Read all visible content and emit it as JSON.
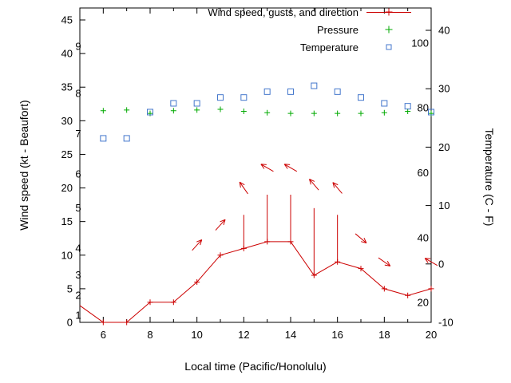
{
  "axes": {
    "xlabel": "Local time (Pacific/Honolulu)",
    "ylabel_left": "Wind speed (kt - Beaufort)",
    "ylabel_right": "Temperature (C - F)"
  },
  "legend": {
    "position": "top-right-inside",
    "entries": [
      {
        "label": "Wind speed, gusts, and direction",
        "marker": "line-plus",
        "color": "#cc0000"
      },
      {
        "label": "Pressure",
        "marker": "plus",
        "color": "#00aa00"
      },
      {
        "label": "Temperature",
        "marker": "open-square",
        "color": "#4477cc"
      }
    ]
  },
  "chart_data": {
    "type": "line",
    "title": "",
    "xlabel": "Local time (Pacific/Honolulu)",
    "ylabel_left": "Wind speed (kt - Beaufort)",
    "ylabel_right": "Temperature (C - F)",
    "grid": false,
    "x_range": [
      5,
      20
    ],
    "x_major_ticks": [
      6,
      8,
      10,
      12,
      14,
      16,
      18,
      20
    ],
    "x_minor_ticks": [
      5,
      7,
      9,
      11,
      13,
      15,
      17,
      19
    ],
    "y_left_range": [
      0,
      46.8
    ],
    "y_left_ticks": [
      0,
      5,
      10,
      15,
      20,
      25,
      30,
      35,
      40,
      45
    ],
    "y_right_range_c": [
      -10,
      43.8
    ],
    "y_right_ticks_c": [
      -10,
      0,
      10,
      20,
      30,
      40
    ],
    "beaufort_scale_labels": [
      {
        "text": "1",
        "kt": 1
      },
      {
        "text": "2",
        "kt": 4
      },
      {
        "text": "3",
        "kt": 7
      },
      {
        "text": "4",
        "kt": 11
      },
      {
        "text": "5",
        "kt": 17
      },
      {
        "text": "6",
        "kt": 22
      },
      {
        "text": "7",
        "kt": 28
      },
      {
        "text": "8",
        "kt": 34
      },
      {
        "text": "9",
        "kt": 41
      }
    ],
    "fahrenheit_scale_labels": [
      {
        "text": "20",
        "c": -6.67
      },
      {
        "text": "40",
        "c": 4.44
      },
      {
        "text": "60",
        "c": 15.56
      },
      {
        "text": "80",
        "c": 26.67
      },
      {
        "text": "100",
        "c": 37.78
      }
    ],
    "series": [
      {
        "name": "Wind speed",
        "type": "line",
        "marker": "plus",
        "color": "#cc0000",
        "x": [
          5,
          6,
          7,
          8,
          9,
          10,
          11,
          12,
          13,
          14,
          15,
          16,
          17,
          18,
          19,
          20
        ],
        "y_kt": [
          2.5,
          0,
          0,
          3,
          3,
          6,
          10,
          11,
          12,
          12,
          7,
          9,
          8,
          5,
          4,
          5
        ]
      },
      {
        "name": "Wind gusts",
        "type": "impulse",
        "color": "#cc0000",
        "bars": [
          {
            "x": 12,
            "from_kt": 11,
            "to_kt": 16
          },
          {
            "x": 13,
            "from_kt": 12,
            "to_kt": 19
          },
          {
            "x": 14,
            "from_kt": 12,
            "to_kt": 19
          },
          {
            "x": 15,
            "from_kt": 7,
            "to_kt": 17
          },
          {
            "x": 16,
            "from_kt": 9,
            "to_kt": 16
          }
        ]
      },
      {
        "name": "Wind direction",
        "type": "arrow",
        "color": "#cc0000",
        "arrows": [
          {
            "x": 10,
            "kt": 11.5,
            "angle_deg": 48
          },
          {
            "x": 11,
            "kt": 14.5,
            "angle_deg": 48
          },
          {
            "x": 12,
            "kt": 20,
            "angle_deg": 125
          },
          {
            "x": 13,
            "kt": 23,
            "angle_deg": 150
          },
          {
            "x": 14,
            "kt": 23,
            "angle_deg": 150
          },
          {
            "x": 15,
            "kt": 20.5,
            "angle_deg": 130
          },
          {
            "x": 16,
            "kt": 20,
            "angle_deg": 130
          },
          {
            "x": 17,
            "kt": 12.5,
            "angle_deg": -40
          },
          {
            "x": 18,
            "kt": 9,
            "angle_deg": -35
          },
          {
            "x": 20,
            "kt": 9,
            "angle_deg": 150
          }
        ]
      },
      {
        "name": "Pressure",
        "type": "points",
        "marker": "plus",
        "color": "#00aa00",
        "x": [
          6,
          7,
          8,
          9,
          10,
          11,
          12,
          13,
          14,
          15,
          16,
          17,
          18,
          19,
          20
        ],
        "y_on_left_axis": [
          31.5,
          31.6,
          31.1,
          31.5,
          31.6,
          31.7,
          31.4,
          31.2,
          31.1,
          31.1,
          31.1,
          31.1,
          31.2,
          31.4,
          31.1
        ]
      },
      {
        "name": "Temperature",
        "type": "points",
        "marker": "open-square",
        "color": "#4477cc",
        "x": [
          6,
          7,
          8,
          9,
          10,
          11,
          12,
          13,
          14,
          15,
          16,
          17,
          18,
          19,
          20
        ],
        "y_c": [
          21.5,
          21.5,
          26,
          27.5,
          27.5,
          28.5,
          28.5,
          29.5,
          29.5,
          30.5,
          29.5,
          28.5,
          27.5,
          27,
          26
        ]
      }
    ]
  }
}
